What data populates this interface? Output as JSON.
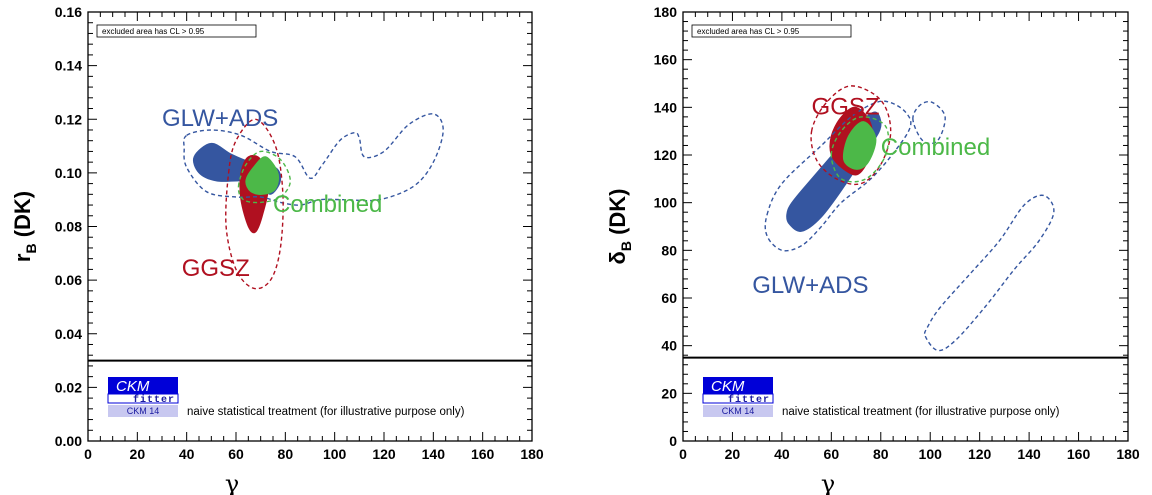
{
  "chart_data": [
    {
      "type": "contour",
      "xlabel": "γ",
      "ylabel_main": "r",
      "ylabel_sub": "B",
      "ylabel_suffix": " (DK)",
      "xlim": [
        0,
        180
      ],
      "ylim": [
        0,
        0.16
      ],
      "xticks": [
        "0",
        "20",
        "40",
        "60",
        "80",
        "100",
        "120",
        "140",
        "160",
        "180"
      ],
      "yticks": [
        "0.00",
        "0.02",
        "0.04",
        "0.06",
        "0.08",
        "0.10",
        "0.12",
        "0.14",
        "0.16"
      ],
      "legend_box": "excluded area has CL > 0.95",
      "note": "naive statistical treatment (for illustrative purpose only)",
      "logo": {
        "main": "CKM",
        "fitter": "fitter",
        "sub": "CKM 14"
      },
      "separator_y": 0.03,
      "region_labels": [
        {
          "text": "GLW+ADS",
          "x": 30,
          "y": 0.1175,
          "color": "#3556a0"
        },
        {
          "text": "GGSZ",
          "x": 38,
          "y": 0.0615,
          "color": "#b01020"
        },
        {
          "text": "Combined",
          "x": 75,
          "y": 0.0855,
          "color": "#4cb848"
        }
      ],
      "regions": [
        {
          "name": "GLW+ADS",
          "style": "filled",
          "color": "#3556a0",
          "points": [
            [
              43,
              0.106
            ],
            [
              50,
              0.111
            ],
            [
              58,
              0.107
            ],
            [
              66,
              0.104
            ],
            [
              76,
              0.102
            ],
            [
              78,
              0.097
            ],
            [
              74,
              0.092
            ],
            [
              69,
              0.096
            ],
            [
              62,
              0.097
            ],
            [
              52,
              0.097
            ],
            [
              45,
              0.1
            ]
          ]
        },
        {
          "name": "GGSZ",
          "style": "filled",
          "color": "#b01020",
          "points": [
            [
              62,
              0.1
            ],
            [
              65,
              0.106
            ],
            [
              70,
              0.105
            ],
            [
              73,
              0.095
            ],
            [
              71,
              0.085
            ],
            [
              68,
              0.078
            ],
            [
              65,
              0.08
            ],
            [
              62,
              0.09
            ]
          ]
        },
        {
          "name": "Combined",
          "style": "filled",
          "color": "#4cb848",
          "points": [
            [
              64,
              0.097
            ],
            [
              67,
              0.102
            ],
            [
              72,
              0.106
            ],
            [
              77,
              0.1
            ],
            [
              76,
              0.094
            ],
            [
              71,
              0.092
            ],
            [
              66,
              0.093
            ]
          ]
        },
        {
          "name": "GLW+ADS",
          "style": "dashed",
          "color": "#3556a0",
          "points": [
            [
              40,
              0.114
            ],
            [
              50,
              0.116
            ],
            [
              62,
              0.114
            ],
            [
              74,
              0.108
            ],
            [
              84,
              0.106
            ],
            [
              90,
              0.098
            ],
            [
              95,
              0.103
            ],
            [
              102,
              0.112
            ],
            [
              108,
              0.115
            ],
            [
              110,
              0.113
            ],
            [
              112,
              0.106
            ],
            [
              120,
              0.108
            ],
            [
              130,
              0.118
            ],
            [
              140,
              0.122
            ],
            [
              144,
              0.116
            ],
            [
              140,
              0.104
            ],
            [
              132,
              0.095
            ],
            [
              118,
              0.09
            ],
            [
              104,
              0.09
            ],
            [
              94,
              0.09
            ],
            [
              86,
              0.088
            ],
            [
              78,
              0.089
            ],
            [
              70,
              0.091
            ],
            [
              60,
              0.091
            ],
            [
              48,
              0.093
            ],
            [
              40,
              0.102
            ],
            [
              39,
              0.109
            ]
          ]
        },
        {
          "name": "GGSZ",
          "style": "dashed",
          "color": "#b01020",
          "points": [
            [
              57,
              0.1
            ],
            [
              60,
              0.112
            ],
            [
              68,
              0.12
            ],
            [
              76,
              0.11
            ],
            [
              79,
              0.092
            ],
            [
              78,
              0.072
            ],
            [
              74,
              0.06
            ],
            [
              67,
              0.057
            ],
            [
              60,
              0.064
            ],
            [
              56,
              0.08
            ]
          ]
        },
        {
          "name": "Combined",
          "style": "dashed",
          "color": "#4cb848",
          "points": [
            [
              61,
              0.095
            ],
            [
              64,
              0.103
            ],
            [
              70,
              0.108
            ],
            [
              78,
              0.105
            ],
            [
              82,
              0.097
            ],
            [
              78,
              0.091
            ],
            [
              70,
              0.089
            ],
            [
              63,
              0.09
            ]
          ]
        }
      ]
    },
    {
      "type": "contour",
      "xlabel": "γ",
      "ylabel_main": "δ",
      "ylabel_sub": "B",
      "ylabel_suffix": " (DK)",
      "xlim": [
        0,
        180
      ],
      "ylim": [
        0,
        180
      ],
      "xticks": [
        "0",
        "20",
        "40",
        "60",
        "80",
        "100",
        "120",
        "140",
        "160",
        "180"
      ],
      "yticks": [
        "0",
        "20",
        "40",
        "60",
        "80",
        "100",
        "120",
        "140",
        "160",
        "180"
      ],
      "legend_box": "excluded area has CL > 0.95",
      "note": "naive statistical treatment (for illustrative purpose only)",
      "logo": {
        "main": "CKM",
        "fitter": "fitter",
        "sub": "CKM 14"
      },
      "separator_y": 35,
      "region_labels": [
        {
          "text": "GGSZ",
          "x": 52,
          "y": 137,
          "color": "#b01020"
        },
        {
          "text": "Combined",
          "x": 80,
          "y": 120,
          "color": "#4cb848"
        },
        {
          "text": "GLW+ADS",
          "x": 28,
          "y": 62,
          "color": "#3556a0"
        }
      ],
      "regions": [
        {
          "name": "GLW+ADS",
          "style": "filled",
          "color": "#3556a0",
          "points": [
            [
              43,
              91
            ],
            [
              48,
              88
            ],
            [
              56,
              94
            ],
            [
              66,
              108
            ],
            [
              76,
              124
            ],
            [
              80,
              132
            ],
            [
              78,
              138
            ],
            [
              72,
              134
            ],
            [
              62,
              122
            ],
            [
              52,
              110
            ],
            [
              44,
              100
            ],
            [
              42,
              95
            ]
          ]
        },
        {
          "name": "GGSZ",
          "style": "filled",
          "color": "#b01020",
          "points": [
            [
              60,
              128
            ],
            [
              64,
              136
            ],
            [
              70,
              140
            ],
            [
              76,
              133
            ],
            [
              76,
              121
            ],
            [
              71,
              112
            ],
            [
              65,
              114
            ],
            [
              60,
              120
            ]
          ]
        },
        {
          "name": "Combined",
          "style": "filled",
          "color": "#4cb848",
          "points": [
            [
              65,
              118
            ],
            [
              67,
              128
            ],
            [
              73,
              134
            ],
            [
              78,
              127
            ],
            [
              75,
              117
            ],
            [
              70,
              114
            ]
          ]
        },
        {
          "name": "GLW+ADS",
          "style": "dashed",
          "color": "#3556a0",
          "points": [
            [
              34,
              95
            ],
            [
              40,
              108
            ],
            [
              56,
              124
            ],
            [
              68,
              136
            ],
            [
              78,
              142
            ],
            [
              84,
              142
            ],
            [
              90,
              138
            ],
            [
              92,
              132
            ],
            [
              86,
              122
            ],
            [
              76,
              110
            ],
            [
              64,
              100
            ],
            [
              56,
              90
            ],
            [
              48,
              82
            ],
            [
              40,
              80
            ],
            [
              34,
              86
            ]
          ]
        },
        {
          "name": "GLW+ADS",
          "style": "dashed",
          "color": "#3556a0",
          "points": [
            [
              93,
              135
            ],
            [
              96,
              141
            ],
            [
              101,
              142
            ],
            [
              106,
              136
            ],
            [
              103,
              126
            ],
            [
              97,
              126
            ]
          ]
        },
        {
          "name": "GLW+ADS",
          "style": "dashed",
          "color": "#3556a0",
          "points": [
            [
              98,
              44
            ],
            [
              103,
              38
            ],
            [
              110,
              42
            ],
            [
              122,
              56
            ],
            [
              134,
              72
            ],
            [
              144,
              84
            ],
            [
              150,
              96
            ],
            [
              146,
              103
            ],
            [
              138,
              99
            ],
            [
              128,
              84
            ],
            [
              116,
              70
            ],
            [
              104,
              56
            ],
            [
              99,
              48
            ]
          ]
        },
        {
          "name": "GGSZ",
          "style": "dashed",
          "color": "#b01020",
          "points": [
            [
              52,
              130
            ],
            [
              58,
              142
            ],
            [
              68,
              149
            ],
            [
              80,
              143
            ],
            [
              84,
              130
            ],
            [
              80,
              116
            ],
            [
              72,
              108
            ],
            [
              62,
              110
            ],
            [
              54,
              118
            ]
          ]
        },
        {
          "name": "Combined",
          "style": "dashed",
          "color": "#4cb848",
          "points": [
            [
              60,
              120
            ],
            [
              64,
              130
            ],
            [
              72,
              136
            ],
            [
              82,
              132
            ],
            [
              82,
              120
            ],
            [
              74,
              110
            ],
            [
              64,
              110
            ]
          ]
        }
      ]
    }
  ]
}
